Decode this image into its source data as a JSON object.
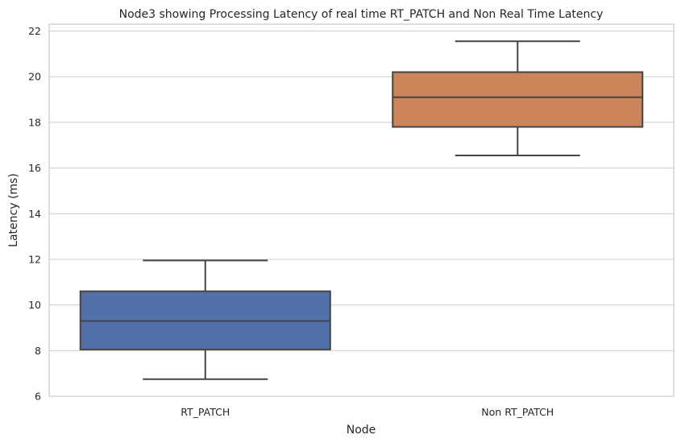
{
  "chart_data": {
    "type": "box",
    "title": "Node3 showing Processing Latency of real time RT_PATCH and Non Real Time Latency",
    "xlabel": "Node",
    "ylabel": "Latency (ms)",
    "ylim": [
      6,
      22.3
    ],
    "yticks": [
      6,
      8,
      10,
      12,
      14,
      16,
      18,
      20,
      22
    ],
    "grid": true,
    "categories": [
      "RT_PATCH",
      "Non RT_PATCH"
    ],
    "boxes": [
      {
        "category": "RT_PATCH",
        "min": 6.75,
        "q1": 8.05,
        "median": 9.3,
        "q3": 10.6,
        "max": 11.95,
        "color": "#5470a8"
      },
      {
        "category": "Non RT_PATCH",
        "min": 16.55,
        "q1": 17.8,
        "median": 19.1,
        "q3": 20.2,
        "max": 21.55,
        "color": "#cc845a"
      }
    ]
  }
}
